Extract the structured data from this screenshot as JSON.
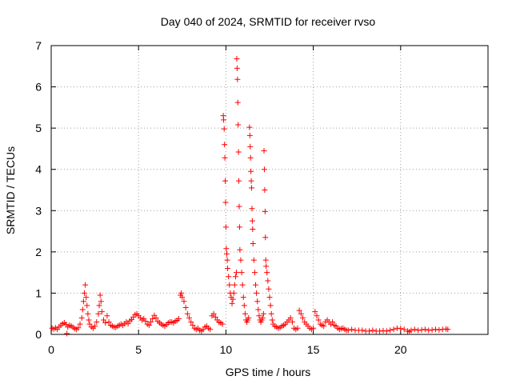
{
  "chart_data": {
    "type": "scatter",
    "title": "Day 040 of 2024, SRMTID for receiver rvso",
    "xlabel": "GPS time / hours",
    "ylabel": "SRMTID / TECUs",
    "xlim": [
      0,
      25
    ],
    "ylim": [
      0,
      7
    ],
    "xticks": [
      0,
      5,
      10,
      15,
      20
    ],
    "yticks": [
      0,
      1,
      2,
      3,
      4,
      5,
      6,
      7
    ],
    "grid": true,
    "marker": "+",
    "color": "#ff0000",
    "series": [
      {
        "name": "SRMTID",
        "points": [
          [
            0.05,
            0.15
          ],
          [
            0.15,
            0.13
          ],
          [
            0.25,
            0.16
          ],
          [
            0.35,
            0.12
          ],
          [
            0.45,
            0.18
          ],
          [
            0.55,
            0.22
          ],
          [
            0.65,
            0.26
          ],
          [
            0.75,
            0.28
          ],
          [
            0.85,
            0.24
          ],
          [
            0.9,
            0.02
          ],
          [
            0.95,
            0.18
          ],
          [
            1.05,
            0.22
          ],
          [
            1.15,
            0.2
          ],
          [
            1.25,
            0.17
          ],
          [
            1.35,
            0.14
          ],
          [
            1.45,
            0.12
          ],
          [
            1.55,
            0.16
          ],
          [
            1.65,
            0.25
          ],
          [
            1.75,
            0.4
          ],
          [
            1.8,
            0.6
          ],
          [
            1.85,
            0.8
          ],
          [
            1.9,
            1.0
          ],
          [
            1.95,
            1.2
          ],
          [
            2.0,
            0.9
          ],
          [
            2.05,
            0.7
          ],
          [
            2.1,
            0.5
          ],
          [
            2.15,
            0.35
          ],
          [
            2.2,
            0.25
          ],
          [
            2.3,
            0.18
          ],
          [
            2.4,
            0.15
          ],
          [
            2.5,
            0.2
          ],
          [
            2.6,
            0.3
          ],
          [
            2.7,
            0.5
          ],
          [
            2.75,
            0.7
          ],
          [
            2.8,
            0.95
          ],
          [
            2.85,
            0.8
          ],
          [
            2.9,
            0.55
          ],
          [
            3.0,
            0.35
          ],
          [
            3.1,
            0.28
          ],
          [
            3.2,
            0.45
          ],
          [
            3.3,
            0.3
          ],
          [
            3.4,
            0.22
          ],
          [
            3.5,
            0.2
          ],
          [
            3.6,
            0.18
          ],
          [
            3.7,
            0.17
          ],
          [
            3.8,
            0.2
          ],
          [
            3.9,
            0.22
          ],
          [
            4.0,
            0.25
          ],
          [
            4.1,
            0.22
          ],
          [
            4.2,
            0.26
          ],
          [
            4.3,
            0.3
          ],
          [
            4.4,
            0.26
          ],
          [
            4.5,
            0.33
          ],
          [
            4.6,
            0.36
          ],
          [
            4.7,
            0.42
          ],
          [
            4.8,
            0.48
          ],
          [
            4.9,
            0.5
          ],
          [
            5.0,
            0.45
          ],
          [
            5.1,
            0.4
          ],
          [
            5.2,
            0.35
          ],
          [
            5.3,
            0.38
          ],
          [
            5.4,
            0.32
          ],
          [
            5.5,
            0.25
          ],
          [
            5.6,
            0.22
          ],
          [
            5.7,
            0.3
          ],
          [
            5.8,
            0.38
          ],
          [
            5.9,
            0.46
          ],
          [
            6.0,
            0.4
          ],
          [
            6.1,
            0.32
          ],
          [
            6.2,
            0.28
          ],
          [
            6.3,
            0.25
          ],
          [
            6.4,
            0.22
          ],
          [
            6.5,
            0.2
          ],
          [
            6.6,
            0.24
          ],
          [
            6.7,
            0.28
          ],
          [
            6.8,
            0.3
          ],
          [
            6.9,
            0.3
          ],
          [
            7.0,
            0.28
          ],
          [
            7.1,
            0.32
          ],
          [
            7.2,
            0.34
          ],
          [
            7.3,
            0.38
          ],
          [
            7.4,
            0.95
          ],
          [
            7.45,
            1.0
          ],
          [
            7.5,
            0.9
          ],
          [
            7.6,
            0.8
          ],
          [
            7.7,
            0.65
          ],
          [
            7.8,
            0.5
          ],
          [
            7.9,
            0.4
          ],
          [
            8.0,
            0.3
          ],
          [
            8.1,
            0.22
          ],
          [
            8.2,
            0.15
          ],
          [
            8.3,
            0.12
          ],
          [
            8.4,
            0.15
          ],
          [
            8.5,
            0.1
          ],
          [
            8.6,
            0.08
          ],
          [
            8.7,
            0.12
          ],
          [
            8.8,
            0.18
          ],
          [
            8.9,
            0.2
          ],
          [
            9.0,
            0.15
          ],
          [
            9.1,
            0.12
          ],
          [
            9.2,
            0.45
          ],
          [
            9.3,
            0.5
          ],
          [
            9.4,
            0.42
          ],
          [
            9.5,
            0.35
          ],
          [
            9.6,
            0.3
          ],
          [
            9.7,
            0.28
          ],
          [
            9.8,
            0.25
          ],
          [
            9.85,
            5.3
          ],
          [
            9.87,
            5.2
          ],
          [
            9.9,
            4.98
          ],
          [
            9.92,
            4.6
          ],
          [
            9.94,
            4.28
          ],
          [
            9.96,
            3.72
          ],
          [
            9.98,
            3.2
          ],
          [
            10.0,
            2.6
          ],
          [
            10.02,
            2.08
          ],
          [
            10.05,
            1.95
          ],
          [
            10.08,
            1.8
          ],
          [
            10.1,
            1.6
          ],
          [
            10.15,
            1.4
          ],
          [
            10.2,
            1.2
          ],
          [
            10.25,
            1.0
          ],
          [
            10.3,
            0.9
          ],
          [
            10.35,
            0.75
          ],
          [
            10.4,
            0.85
          ],
          [
            10.45,
            1.0
          ],
          [
            10.5,
            1.2
          ],
          [
            10.55,
            1.4
          ],
          [
            10.6,
            1.5
          ],
          [
            10.62,
            6.68
          ],
          [
            10.64,
            6.45
          ],
          [
            10.66,
            6.18
          ],
          [
            10.68,
            5.62
          ],
          [
            10.7,
            5.08
          ],
          [
            10.72,
            4.42
          ],
          [
            10.74,
            3.72
          ],
          [
            10.76,
            3.1
          ],
          [
            10.78,
            2.6
          ],
          [
            10.8,
            2.05
          ],
          [
            10.85,
            1.8
          ],
          [
            10.9,
            1.5
          ],
          [
            10.95,
            1.2
          ],
          [
            11.0,
            0.9
          ],
          [
            11.05,
            0.7
          ],
          [
            11.1,
            0.5
          ],
          [
            11.15,
            0.35
          ],
          [
            11.2,
            0.3
          ],
          [
            11.25,
            0.35
          ],
          [
            11.3,
            0.4
          ],
          [
            11.35,
            5.02
          ],
          [
            11.37,
            4.82
          ],
          [
            11.39,
            4.55
          ],
          [
            11.41,
            4.28
          ],
          [
            11.43,
            3.95
          ],
          [
            11.45,
            3.72
          ],
          [
            11.47,
            3.55
          ],
          [
            11.49,
            3.05
          ],
          [
            11.51,
            2.75
          ],
          [
            11.53,
            2.55
          ],
          [
            11.55,
            2.2
          ],
          [
            11.6,
            1.8
          ],
          [
            11.65,
            1.5
          ],
          [
            11.7,
            1.2
          ],
          [
            11.75,
            1.0
          ],
          [
            11.8,
            0.8
          ],
          [
            11.85,
            0.6
          ],
          [
            11.9,
            0.45
          ],
          [
            11.95,
            0.35
          ],
          [
            12.0,
            0.3
          ],
          [
            12.05,
            0.35
          ],
          [
            12.1,
            0.4
          ],
          [
            12.15,
            0.5
          ],
          [
            12.18,
            4.45
          ],
          [
            12.2,
            4.0
          ],
          [
            12.22,
            3.5
          ],
          [
            12.24,
            2.98
          ],
          [
            12.26,
            2.35
          ],
          [
            12.28,
            1.8
          ],
          [
            12.3,
            1.65
          ],
          [
            12.35,
            1.5
          ],
          [
            12.4,
            1.3
          ],
          [
            12.45,
            1.1
          ],
          [
            12.5,
            0.9
          ],
          [
            12.55,
            0.7
          ],
          [
            12.6,
            0.5
          ],
          [
            12.65,
            0.35
          ],
          [
            12.7,
            0.25
          ],
          [
            12.8,
            0.2
          ],
          [
            12.9,
            0.18
          ],
          [
            13.0,
            0.15
          ],
          [
            13.1,
            0.17
          ],
          [
            13.2,
            0.2
          ],
          [
            13.3,
            0.22
          ],
          [
            13.4,
            0.25
          ],
          [
            13.5,
            0.3
          ],
          [
            13.6,
            0.35
          ],
          [
            13.7,
            0.4
          ],
          [
            13.8,
            0.3
          ],
          [
            13.9,
            0.15
          ],
          [
            14.0,
            0.12
          ],
          [
            14.1,
            0.15
          ],
          [
            14.2,
            0.58
          ],
          [
            14.3,
            0.5
          ],
          [
            14.4,
            0.4
          ],
          [
            14.5,
            0.3
          ],
          [
            14.6,
            0.25
          ],
          [
            14.7,
            0.2
          ],
          [
            14.8,
            0.15
          ],
          [
            14.9,
            0.12
          ],
          [
            15.0,
            0.15
          ],
          [
            15.1,
            0.55
          ],
          [
            15.2,
            0.45
          ],
          [
            15.3,
            0.35
          ],
          [
            15.4,
            0.25
          ],
          [
            15.5,
            0.22
          ],
          [
            15.6,
            0.2
          ],
          [
            15.7,
            0.3
          ],
          [
            15.8,
            0.35
          ],
          [
            15.9,
            0.3
          ],
          [
            16.0,
            0.25
          ],
          [
            16.1,
            0.3
          ],
          [
            16.2,
            0.22
          ],
          [
            16.3,
            0.2
          ],
          [
            16.4,
            0.15
          ],
          [
            16.5,
            0.12
          ],
          [
            16.6,
            0.14
          ],
          [
            16.7,
            0.15
          ],
          [
            16.8,
            0.12
          ],
          [
            16.9,
            0.1
          ],
          [
            17.0,
            0.1
          ],
          [
            17.2,
            0.12
          ],
          [
            17.4,
            0.1
          ],
          [
            17.6,
            0.1
          ],
          [
            17.8,
            0.1
          ],
          [
            18.0,
            0.08
          ],
          [
            18.2,
            0.08
          ],
          [
            18.4,
            0.1
          ],
          [
            18.6,
            0.08
          ],
          [
            18.8,
            0.08
          ],
          [
            19.0,
            0.09
          ],
          [
            19.2,
            0.08
          ],
          [
            19.4,
            0.1
          ],
          [
            19.6,
            0.12
          ],
          [
            19.8,
            0.15
          ],
          [
            20.0,
            0.14
          ],
          [
            20.2,
            0.12
          ],
          [
            20.4,
            0.08
          ],
          [
            20.5,
            0.06
          ],
          [
            20.6,
            0.1
          ],
          [
            20.8,
            0.12
          ],
          [
            21.0,
            0.1
          ],
          [
            21.2,
            0.11
          ],
          [
            21.4,
            0.12
          ],
          [
            21.6,
            0.1
          ],
          [
            21.8,
            0.11
          ],
          [
            22.0,
            0.12
          ],
          [
            22.2,
            0.11
          ],
          [
            22.4,
            0.12
          ],
          [
            22.6,
            0.13
          ],
          [
            22.7,
            0.12
          ]
        ]
      }
    ]
  }
}
